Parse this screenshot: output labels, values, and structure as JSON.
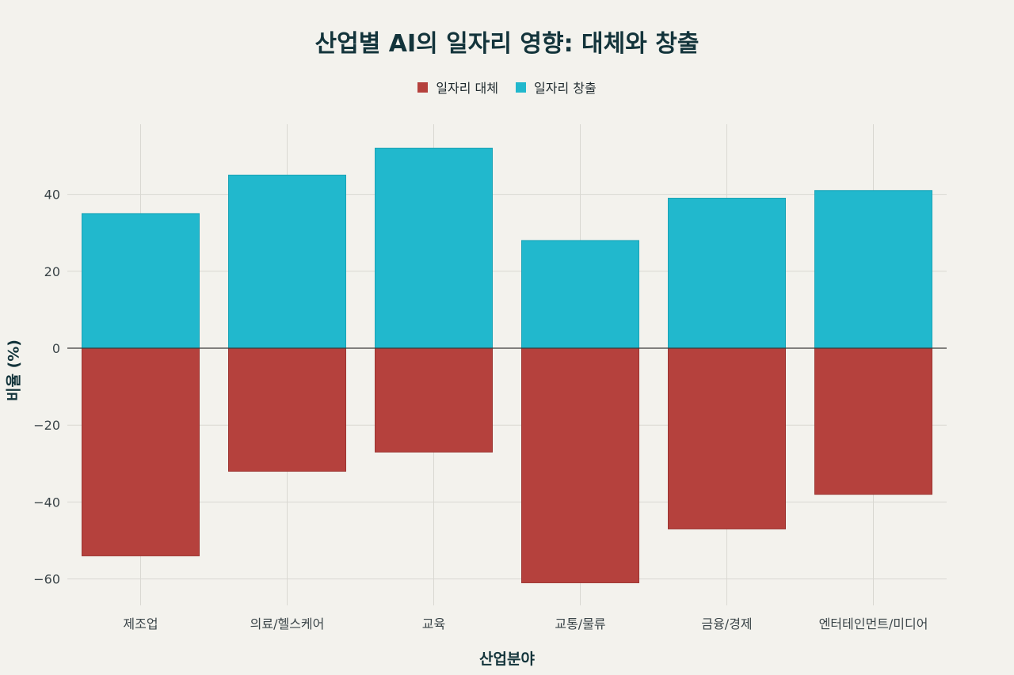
{
  "chart_data": {
    "type": "bar",
    "title": "산업별 AI의 일자리 영향: 대체와 창출",
    "xlabel": "산업분야",
    "ylabel": "비율 (%)",
    "categories": [
      "제조업",
      "의료/헬스케어",
      "교육",
      "교통/물류",
      "금융/경제",
      "엔터테인먼트/미디어"
    ],
    "series": [
      {
        "name": "일자리 대체",
        "color": "#b5413d",
        "values": [
          -54,
          -32,
          -27,
          -61,
          -47,
          -38
        ]
      },
      {
        "name": "일자리 창출",
        "color": "#21b8cd",
        "values": [
          35,
          45,
          52,
          28,
          39,
          41
        ]
      }
    ],
    "ylim": [
      -68,
      58
    ],
    "yticks": [
      -60,
      -40,
      -20,
      0,
      20,
      40
    ],
    "grid": true,
    "legend_position": "top-center"
  }
}
